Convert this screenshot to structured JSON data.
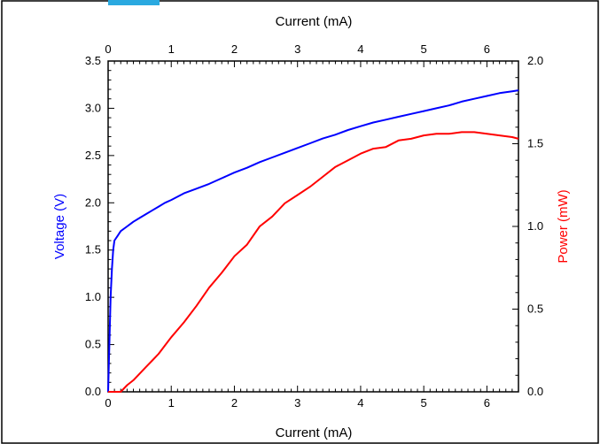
{
  "chart_data": {
    "type": "line",
    "x_axis": {
      "label": "Current (mA)",
      "range": [
        0,
        6.5
      ],
      "ticks": [
        0,
        1,
        2,
        3,
        4,
        5,
        6
      ]
    },
    "x_axis_top": {
      "label": "Current (mA)",
      "ticks": [
        0,
        1,
        2,
        3,
        4,
        5,
        6
      ]
    },
    "y_axis_left": {
      "label": "Voltage (V)",
      "color": "#0000ff",
      "range": [
        0,
        3.5
      ],
      "ticks": [
        "0.0",
        "0.5",
        "1.0",
        "1.5",
        "2.0",
        "2.5",
        "3.0",
        "3.5"
      ]
    },
    "y_axis_right": {
      "label": "Power (mW)",
      "color": "#ff0000",
      "range": [
        0,
        2.0
      ],
      "ticks": [
        "0.0",
        "0.5",
        "1.0",
        "1.5",
        "2.0"
      ]
    },
    "series": [
      {
        "axis": "left",
        "color": "#0000ff",
        "points": [
          [
            0,
            0
          ],
          [
            0.02,
            0.5
          ],
          [
            0.04,
            1.0
          ],
          [
            0.06,
            1.3
          ],
          [
            0.08,
            1.5
          ],
          [
            0.1,
            1.6
          ],
          [
            0.15,
            1.65
          ],
          [
            0.2,
            1.7
          ],
          [
            0.3,
            1.75
          ],
          [
            0.4,
            1.8
          ],
          [
            0.5,
            1.84
          ],
          [
            0.6,
            1.88
          ],
          [
            0.7,
            1.92
          ],
          [
            0.8,
            1.96
          ],
          [
            0.9,
            2.0
          ],
          [
            1.0,
            2.03
          ],
          [
            1.2,
            2.1
          ],
          [
            1.4,
            2.15
          ],
          [
            1.6,
            2.2
          ],
          [
            1.8,
            2.26
          ],
          [
            2.0,
            2.32
          ],
          [
            2.2,
            2.37
          ],
          [
            2.4,
            2.43
          ],
          [
            2.6,
            2.48
          ],
          [
            2.8,
            2.53
          ],
          [
            3.0,
            2.58
          ],
          [
            3.2,
            2.63
          ],
          [
            3.4,
            2.68
          ],
          [
            3.6,
            2.72
          ],
          [
            3.8,
            2.77
          ],
          [
            4.0,
            2.81
          ],
          [
            4.2,
            2.85
          ],
          [
            4.4,
            2.88
          ],
          [
            4.6,
            2.91
          ],
          [
            4.8,
            2.94
          ],
          [
            5.0,
            2.97
          ],
          [
            5.2,
            3.0
          ],
          [
            5.4,
            3.03
          ],
          [
            5.6,
            3.07
          ],
          [
            5.8,
            3.1
          ],
          [
            6.0,
            3.13
          ],
          [
            6.2,
            3.16
          ],
          [
            6.4,
            3.18
          ],
          [
            6.5,
            3.19
          ]
        ]
      },
      {
        "axis": "right",
        "color": "#ff0000",
        "points": [
          [
            0,
            0.0
          ],
          [
            0.1,
            0.0
          ],
          [
            0.2,
            0.0
          ],
          [
            0.3,
            0.04
          ],
          [
            0.4,
            0.07
          ],
          [
            0.5,
            0.11
          ],
          [
            0.6,
            0.15
          ],
          [
            0.7,
            0.19
          ],
          [
            0.8,
            0.23
          ],
          [
            0.9,
            0.28
          ],
          [
            1.0,
            0.33
          ],
          [
            1.2,
            0.42
          ],
          [
            1.4,
            0.52
          ],
          [
            1.6,
            0.63
          ],
          [
            1.8,
            0.72
          ],
          [
            2.0,
            0.82
          ],
          [
            2.2,
            0.89
          ],
          [
            2.4,
            1.0
          ],
          [
            2.6,
            1.06
          ],
          [
            2.8,
            1.14
          ],
          [
            3.0,
            1.19
          ],
          [
            3.2,
            1.24
          ],
          [
            3.4,
            1.3
          ],
          [
            3.6,
            1.36
          ],
          [
            3.8,
            1.4
          ],
          [
            4.0,
            1.44
          ],
          [
            4.2,
            1.47
          ],
          [
            4.4,
            1.48
          ],
          [
            4.6,
            1.52
          ],
          [
            4.8,
            1.53
          ],
          [
            5.0,
            1.55
          ],
          [
            5.2,
            1.56
          ],
          [
            5.4,
            1.56
          ],
          [
            5.6,
            1.57
          ],
          [
            5.8,
            1.57
          ],
          [
            6.0,
            1.56
          ],
          [
            6.2,
            1.55
          ],
          [
            6.4,
            1.54
          ],
          [
            6.5,
            1.53
          ]
        ]
      }
    ],
    "grid": false,
    "legend": "none"
  }
}
